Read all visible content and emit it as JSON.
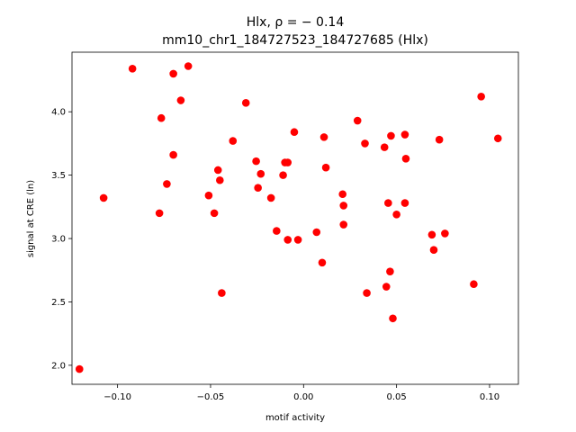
{
  "chart_data": {
    "type": "scatter",
    "title_line1": "Hlx, ρ = − 0.14",
    "title_line2": "mm10_chr1_184727523_184727685 (Hlx)",
    "xlabel": "motif activity",
    "ylabel": "signal at CRE (ln)",
    "xlim": [
      -0.1245,
      0.1155
    ],
    "ylim": [
      1.85,
      4.47
    ],
    "xticks": [
      -0.1,
      -0.05,
      0.0,
      0.05,
      0.1
    ],
    "xtick_labels": [
      "−0.10",
      "−0.05",
      "0.00",
      "0.05",
      "0.10"
    ],
    "yticks": [
      2.0,
      2.5,
      3.0,
      3.5,
      4.0
    ],
    "ytick_labels": [
      "2.0",
      "2.5",
      "3.0",
      "3.5",
      "4.0"
    ],
    "grid": false,
    "point_color": "#ff0000",
    "points": [
      {
        "x": -0.1205,
        "y": 1.97
      },
      {
        "x": -0.1075,
        "y": 3.32
      },
      {
        "x": -0.092,
        "y": 4.34
      },
      {
        "x": -0.0775,
        "y": 3.2
      },
      {
        "x": -0.0765,
        "y": 3.95
      },
      {
        "x": -0.0735,
        "y": 3.43
      },
      {
        "x": -0.07,
        "y": 4.3
      },
      {
        "x": -0.07,
        "y": 3.66
      },
      {
        "x": -0.066,
        "y": 4.09
      },
      {
        "x": -0.062,
        "y": 4.36
      },
      {
        "x": -0.051,
        "y": 3.34
      },
      {
        "x": -0.048,
        "y": 3.2
      },
      {
        "x": -0.046,
        "y": 3.54
      },
      {
        "x": -0.045,
        "y": 3.46
      },
      {
        "x": -0.044,
        "y": 2.57
      },
      {
        "x": -0.038,
        "y": 3.77
      },
      {
        "x": -0.031,
        "y": 4.07
      },
      {
        "x": -0.0255,
        "y": 3.61
      },
      {
        "x": -0.0245,
        "y": 3.4
      },
      {
        "x": -0.023,
        "y": 3.51
      },
      {
        "x": -0.0175,
        "y": 3.32
      },
      {
        "x": -0.0145,
        "y": 3.06
      },
      {
        "x": -0.011,
        "y": 3.5
      },
      {
        "x": -0.01,
        "y": 3.6
      },
      {
        "x": -0.0085,
        "y": 3.6
      },
      {
        "x": -0.0085,
        "y": 2.99
      },
      {
        "x": -0.005,
        "y": 3.84
      },
      {
        "x": -0.003,
        "y": 2.99
      },
      {
        "x": 0.007,
        "y": 3.05
      },
      {
        "x": 0.01,
        "y": 2.81
      },
      {
        "x": 0.011,
        "y": 3.8
      },
      {
        "x": 0.012,
        "y": 3.56
      },
      {
        "x": 0.021,
        "y": 3.35
      },
      {
        "x": 0.0215,
        "y": 3.26
      },
      {
        "x": 0.0215,
        "y": 3.11
      },
      {
        "x": 0.029,
        "y": 3.93
      },
      {
        "x": 0.033,
        "y": 3.75
      },
      {
        "x": 0.034,
        "y": 2.57
      },
      {
        "x": 0.0435,
        "y": 3.72
      },
      {
        "x": 0.0445,
        "y": 2.62
      },
      {
        "x": 0.0455,
        "y": 3.28
      },
      {
        "x": 0.0465,
        "y": 2.74
      },
      {
        "x": 0.047,
        "y": 3.81
      },
      {
        "x": 0.048,
        "y": 2.37
      },
      {
        "x": 0.05,
        "y": 3.19
      },
      {
        "x": 0.0545,
        "y": 3.28
      },
      {
        "x": 0.0545,
        "y": 3.82
      },
      {
        "x": 0.055,
        "y": 3.63
      },
      {
        "x": 0.069,
        "y": 3.03
      },
      {
        "x": 0.07,
        "y": 2.91
      },
      {
        "x": 0.073,
        "y": 3.78
      },
      {
        "x": 0.076,
        "y": 3.04
      },
      {
        "x": 0.0915,
        "y": 2.64
      },
      {
        "x": 0.0955,
        "y": 4.12
      },
      {
        "x": 0.1045,
        "y": 3.79
      }
    ]
  }
}
